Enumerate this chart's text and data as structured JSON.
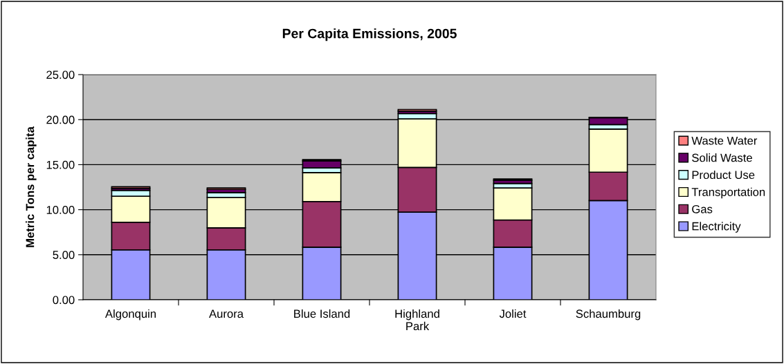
{
  "chart_data": {
    "type": "bar",
    "title": "Per Capita Emissions, 2005",
    "ylabel": "Metric Tons per capita",
    "categories": [
      "Algonquin",
      "Aurora",
      "Blue Island",
      "Highland\nPark",
      "Joliet",
      "Schaumburg"
    ],
    "stacked": true,
    "series": [
      {
        "name": "Electricity",
        "color": "#9999ff",
        "values": [
          5.54,
          5.54,
          5.84,
          9.73,
          5.84,
          11.02
        ]
      },
      {
        "name": "Gas",
        "color": "#993366",
        "values": [
          3.07,
          2.44,
          5.07,
          4.96,
          3.02,
          3.15
        ]
      },
      {
        "name": "Transportation",
        "color": "#ffffcc",
        "values": [
          2.89,
          3.39,
          3.21,
          5.39,
          3.55,
          4.78
        ]
      },
      {
        "name": "Product Use",
        "color": "#ccffff",
        "values": [
          0.64,
          0.52,
          0.52,
          0.6,
          0.5,
          0.5
        ]
      },
      {
        "name": "Solid Waste",
        "color": "#660066",
        "values": [
          0.23,
          0.36,
          0.79,
          0.27,
          0.37,
          0.76
        ]
      },
      {
        "name": "Waste Water",
        "color": "#ff8080",
        "values": [
          0.18,
          0.17,
          0.13,
          0.18,
          0.13,
          0.03
        ]
      }
    ],
    "ylim": [
      0,
      25
    ],
    "yticks": [
      {
        "value": 0,
        "label": "0.00"
      },
      {
        "value": 5,
        "label": "5.00"
      },
      {
        "value": 10,
        "label": "10.00"
      },
      {
        "value": 15,
        "label": "15.00"
      },
      {
        "value": 20,
        "label": "20.00"
      },
      {
        "value": 25,
        "label": "25.00"
      }
    ],
    "grid": "y",
    "legend": "right"
  }
}
